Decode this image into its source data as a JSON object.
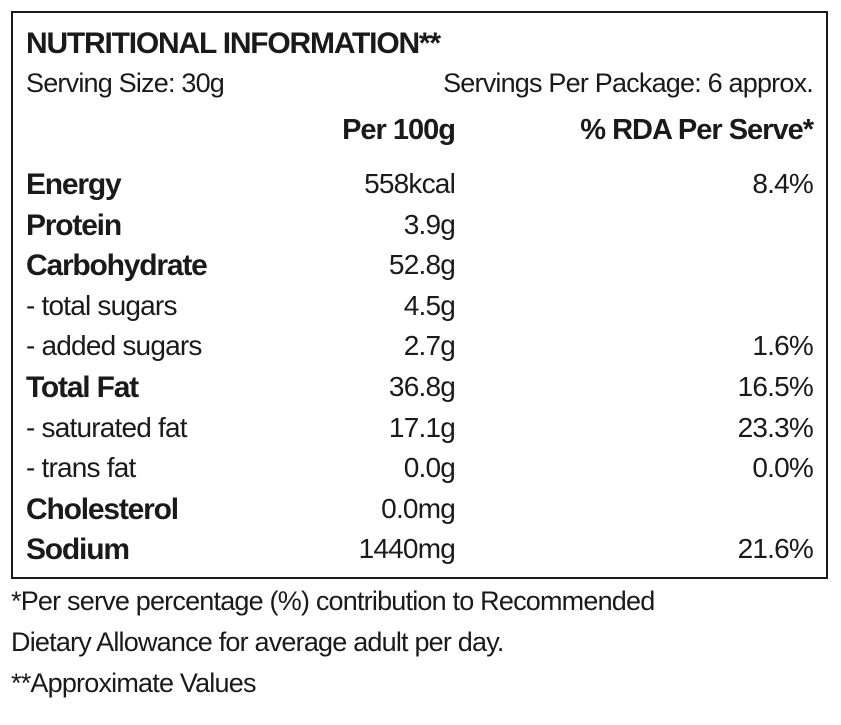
{
  "label": {
    "title": "NUTRITIONAL INFORMATION**",
    "serving_size": "Serving Size: 30g",
    "servings_per_package": "Servings Per Package: 6 approx.",
    "columns": {
      "per_100g": "Per 100g",
      "rda_per_serve": "% RDA Per Serve*"
    },
    "rows": [
      {
        "name": "Energy",
        "per_100g": "558kcal",
        "rda": "8.4%"
      },
      {
        "name": "Protein",
        "per_100g": "3.9g",
        "rda": ""
      },
      {
        "name": "Carbohydrate",
        "per_100g": "52.8g",
        "rda": ""
      },
      {
        "name": " - total sugars",
        "per_100g": "4.5g",
        "rda": ""
      },
      {
        "name": " - added sugars",
        "per_100g": "2.7g",
        "rda": "1.6%"
      },
      {
        "name": "Total Fat",
        "per_100g": "36.8g",
        "rda": "16.5%"
      },
      {
        "name": " - saturated fat",
        "per_100g": "17.1g",
        "rda": "23.3%"
      },
      {
        "name": " - trans fat",
        "per_100g": "0.0g",
        "rda": "0.0%"
      },
      {
        "name": "Cholesterol",
        "per_100g": "0.0mg",
        "rda": ""
      },
      {
        "name": "Sodium",
        "per_100g": "1440mg",
        "rda": "21.6%"
      }
    ]
  },
  "footnotes": {
    "line1": "*Per serve percentage (%) contribution to Recommended",
    "line2": "Dietary Allowance for average adult per day.",
    "line3": "**Approximate Values"
  }
}
